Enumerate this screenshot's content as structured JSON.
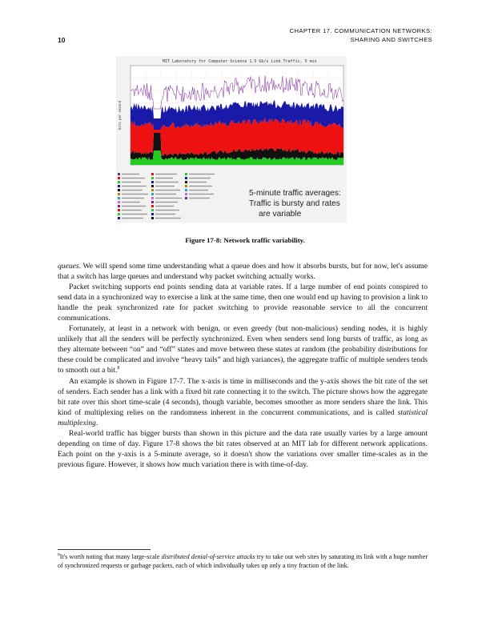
{
  "header": {
    "chapter": "CHAPTER 17.  COMMUNICATION NETWORKS:",
    "section": "SHARING AND SWITCHES",
    "page_number": "10"
  },
  "figure": {
    "plot_title": "MIT Laboratory for Computer Science 1.5 Gb/s Link Traffic, 5 min",
    "overlay_line1": "5-minute traffic averages:",
    "overlay_line2": "Traffic is bursty and rates",
    "overlay_line3": "are variable",
    "colors": {
      "red": "#ee1111",
      "blue": "#1a1aa8",
      "green": "#22cc22",
      "purple": "#7a1fa0",
      "black": "#111111"
    }
  },
  "caption": "Figure 17-8: Network traffic variability.",
  "paragraphs": [
    {
      "id": "p0",
      "pre": "",
      "em": "queues",
      "post": ". We will spend some time understanding what a queue does and how it absorbs bursts, but for now, let's assume that a switch has large queues and understand why packet switching actually works."
    },
    {
      "id": "p1",
      "text": "Packet switching supports end points sending data at variable rates. If a large number of end points conspired to send data in a synchronized way to exercise a link at the same time, then one would end up having to provision a link to handle the peak synchronized rate for packet switching to provide reasonable service to all the concurrent communications."
    },
    {
      "id": "p2",
      "text": "Fortunately, at least in a network with benign, or even greedy (but non-malicious) sending nodes, it is highly unlikely that all the senders will be perfectly synchronized. Even when senders send long bursts of traffic, as long as they alternate between “on” and “off” states and move between these states at random (the probability distributions for these could be complicated and involve “heavy tails” and high variances), the aggregate traffic of multiple senders tends to smooth out a bit.",
      "sup": "8"
    },
    {
      "id": "p3",
      "pre": "An example is shown in Figure 17-7. The x-axis is time in milliseconds and the y-axis shows the bit rate of the set of senders. Each sender has a link with a fixed bit rate connecting it to the switch. The picture shows how the aggregate bit rate over this short time-scale (4 seconds), though variable, becomes smoother as more senders share the link. This kind of multiplexing relies on the randomness inherent in the concurrent communications, and is called ",
      "em": "statistical multiplexing",
      "post": "."
    },
    {
      "id": "p4",
      "text": "Real-world traffic has bigger bursts than shown in this picture and the data rate usually varies by a large amount depending on time of day. Figure 17-8 shows the bit rates observed at an MIT lab for different network applications. Each point on the y-axis is a 5-minute average, so it doesn't show the variations over smaller time-scales as in the previous figure. However, it shows how much variation there is with time-of-day."
    }
  ],
  "footnote": {
    "mark": "8",
    "pre": "It's worth noting that many large-scale ",
    "em": "distributed denial-of-service attacks",
    "post": " try to take out web sites by saturating its link with a huge number of synchronized requests or garbage packets, each of which individually takes up only a tiny fraction of the link."
  }
}
